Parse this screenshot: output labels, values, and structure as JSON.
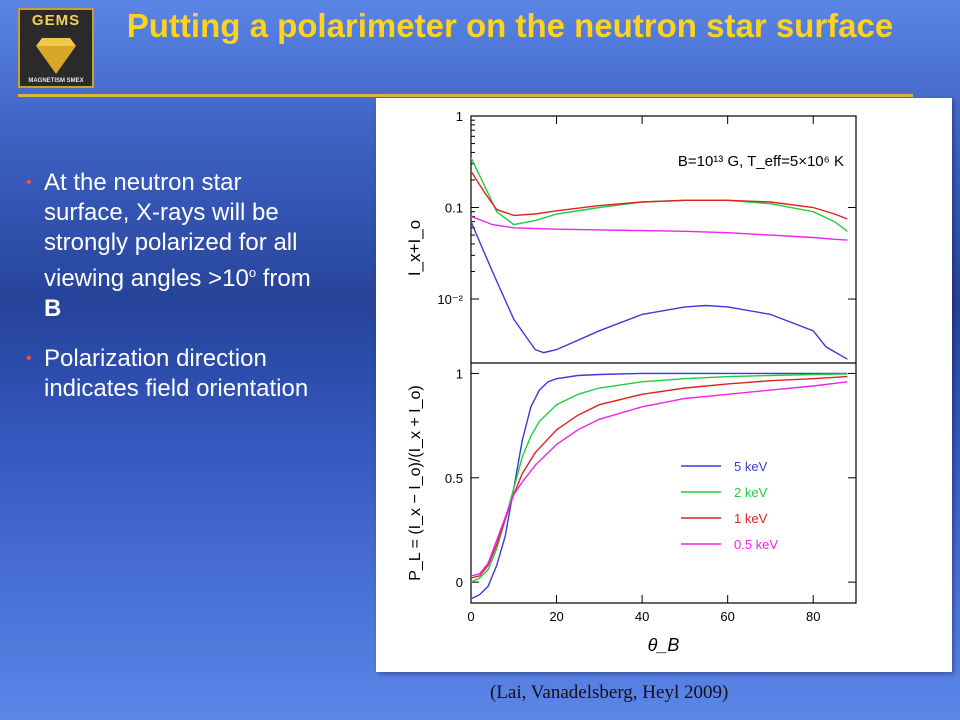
{
  "header": {
    "logo_text": "GEMS",
    "logo_subtext": "MAGNETISM SMEX",
    "title": "Putting a polarimeter on the neutron star surface"
  },
  "bullets": {
    "b1_pre": "At the neutron star surface, X-rays will be strongly polarized for all viewing angles >10",
    "b1_sup": "o",
    "b1_mid": " from ",
    "b1_bold": "B",
    "b2": "Polarization direction indicates field orientation"
  },
  "citation": "(Lai, Vanadelsberg, Heyl 2009)",
  "chart_data": [
    {
      "type": "line",
      "annotation": "B=10¹³ G, T_eff=5×10⁶ K",
      "ylabel": "I_x+I_o",
      "yscale": "log",
      "ylim": [
        0.002,
        1
      ],
      "xlim": [
        0,
        90
      ],
      "yticks": [
        "1",
        "0.1",
        "10⁻²"
      ],
      "series": [
        {
          "name": "5 keV",
          "color": "#3a3ad8",
          "x": [
            0,
            5,
            10,
            15,
            17,
            20,
            30,
            40,
            50,
            55,
            60,
            70,
            80,
            83,
            88
          ],
          "y": [
            0.07,
            0.02,
            0.006,
            0.0028,
            0.0026,
            0.0028,
            0.0045,
            0.0068,
            0.0082,
            0.0085,
            0.0082,
            0.0068,
            0.0045,
            0.003,
            0.0022
          ]
        },
        {
          "name": "2 keV",
          "color": "#22cc44",
          "x": [
            0,
            3,
            6,
            10,
            15,
            20,
            30,
            40,
            50,
            60,
            70,
            80,
            85,
            88
          ],
          "y": [
            0.35,
            0.18,
            0.09,
            0.065,
            0.072,
            0.085,
            0.1,
            0.115,
            0.12,
            0.12,
            0.11,
            0.09,
            0.07,
            0.055
          ]
        },
        {
          "name": "1 keV",
          "color": "#dd2222",
          "x": [
            0,
            3,
            6,
            10,
            15,
            20,
            30,
            40,
            50,
            60,
            70,
            80,
            85,
            88
          ],
          "y": [
            0.25,
            0.15,
            0.095,
            0.082,
            0.085,
            0.092,
            0.105,
            0.115,
            0.12,
            0.12,
            0.115,
            0.1,
            0.085,
            0.075
          ]
        },
        {
          "name": "0.5 keV",
          "color": "#ee22ee",
          "x": [
            0,
            5,
            10,
            20,
            30,
            40,
            50,
            60,
            70,
            80,
            85,
            88
          ],
          "y": [
            0.08,
            0.065,
            0.06,
            0.058,
            0.057,
            0.056,
            0.055,
            0.053,
            0.05,
            0.047,
            0.045,
            0.044
          ]
        }
      ]
    },
    {
      "type": "line",
      "ylabel": "P_L = (I_x − I_o)/(I_x + I_o)",
      "xlabel": "θ_B",
      "xlim": [
        0,
        90
      ],
      "ylim": [
        -0.1,
        1.05
      ],
      "xticks": [
        0,
        20,
        40,
        60,
        80
      ],
      "yticks": [
        0,
        0.5,
        1
      ],
      "legend": "right-center",
      "series": [
        {
          "name": "5 keV",
          "color": "#3a3ad8",
          "x": [
            0,
            2,
            4,
            6,
            8,
            10,
            12,
            14,
            16,
            18,
            20,
            25,
            30,
            40,
            60,
            88
          ],
          "y": [
            -0.08,
            -0.06,
            -0.02,
            0.08,
            0.22,
            0.45,
            0.68,
            0.84,
            0.92,
            0.96,
            0.975,
            0.99,
            0.995,
            1.0,
            1.0,
            1.0
          ]
        },
        {
          "name": "2 keV",
          "color": "#22cc44",
          "x": [
            0,
            2,
            4,
            6,
            8,
            10,
            12,
            14,
            16,
            20,
            25,
            30,
            40,
            50,
            60,
            70,
            80,
            88
          ],
          "y": [
            0.0,
            0.02,
            0.06,
            0.16,
            0.3,
            0.45,
            0.6,
            0.7,
            0.77,
            0.85,
            0.9,
            0.93,
            0.96,
            0.975,
            0.985,
            0.99,
            0.995,
            0.998
          ]
        },
        {
          "name": "1 keV",
          "color": "#dd2222",
          "x": [
            0,
            2,
            4,
            6,
            8,
            10,
            12,
            15,
            20,
            25,
            30,
            40,
            50,
            60,
            70,
            80,
            88
          ],
          "y": [
            0.02,
            0.03,
            0.08,
            0.18,
            0.3,
            0.42,
            0.52,
            0.62,
            0.73,
            0.8,
            0.85,
            0.9,
            0.93,
            0.95,
            0.965,
            0.975,
            0.985
          ]
        },
        {
          "name": "0.5 keV",
          "color": "#ee22ee",
          "x": [
            0,
            2,
            4,
            6,
            8,
            10,
            12,
            15,
            20,
            25,
            30,
            40,
            50,
            60,
            70,
            80,
            88
          ],
          "y": [
            0.03,
            0.04,
            0.09,
            0.2,
            0.31,
            0.42,
            0.48,
            0.56,
            0.66,
            0.73,
            0.78,
            0.84,
            0.88,
            0.9,
            0.92,
            0.94,
            0.96
          ]
        }
      ]
    }
  ]
}
